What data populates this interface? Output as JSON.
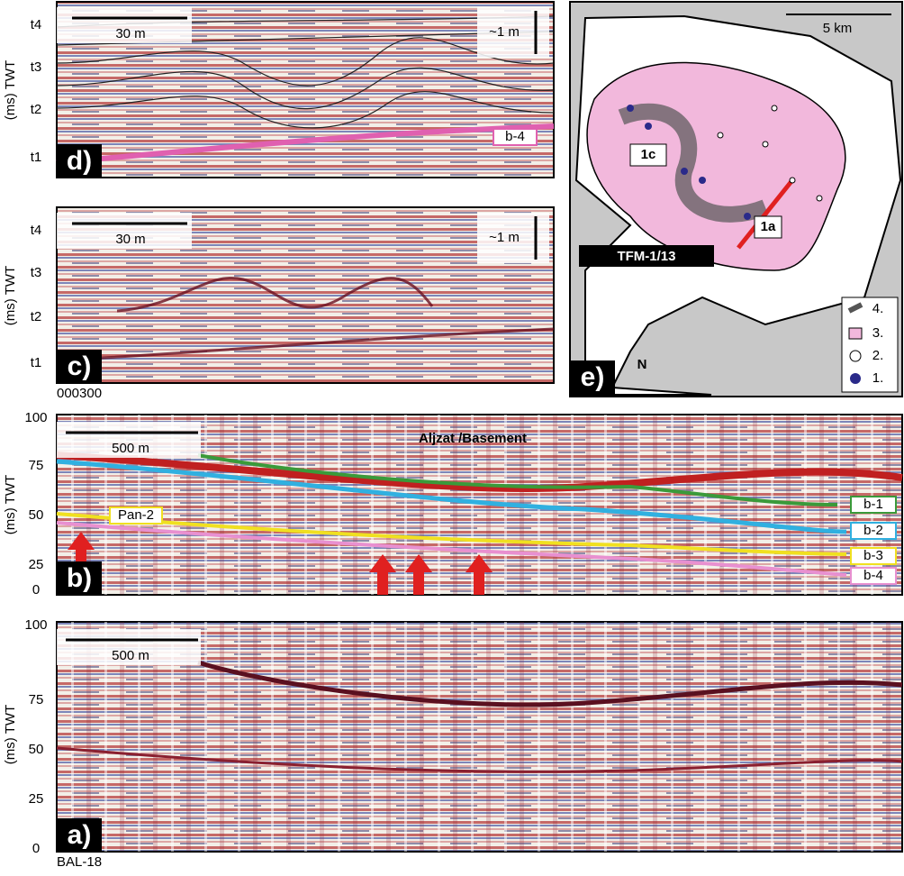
{
  "panels": {
    "d": {
      "label": "d)",
      "scale": "30 m",
      "vscale": "~1 m",
      "horizon": "b-4",
      "axis_title": "(ms) TWT",
      "ticks": [
        "t1",
        "t2",
        "t3",
        "t4"
      ]
    },
    "c": {
      "label": "c)",
      "scale": "30 m",
      "vscale": "~1 m",
      "axis_title": "(ms) TWT",
      "ticks": [
        "t1",
        "t2",
        "t3",
        "t4"
      ],
      "line_name": "000300"
    },
    "e": {
      "label": "e)",
      "north": "N",
      "scale": "5 km",
      "well": "TFM-1/13",
      "section_labels": [
        "1c",
        "1a"
      ],
      "legend": [
        "1.",
        "2.",
        "3.",
        "4."
      ]
    },
    "b": {
      "label": "b)",
      "scale": "500 m",
      "axis_title": "(ms) TWT",
      "ticks": [
        "0",
        "25",
        "50",
        "75",
        "100"
      ],
      "basement": "Aljzat /Basement",
      "pan": "Pan-2",
      "horizons": [
        "b-1",
        "b-2",
        "b-3",
        "b-4"
      ]
    },
    "a": {
      "label": "a)",
      "scale": "500 m",
      "axis_title": "(ms) TWT",
      "ticks": [
        "0",
        "25",
        "50",
        "75",
        "100"
      ],
      "line_name": "BAL-18"
    }
  }
}
